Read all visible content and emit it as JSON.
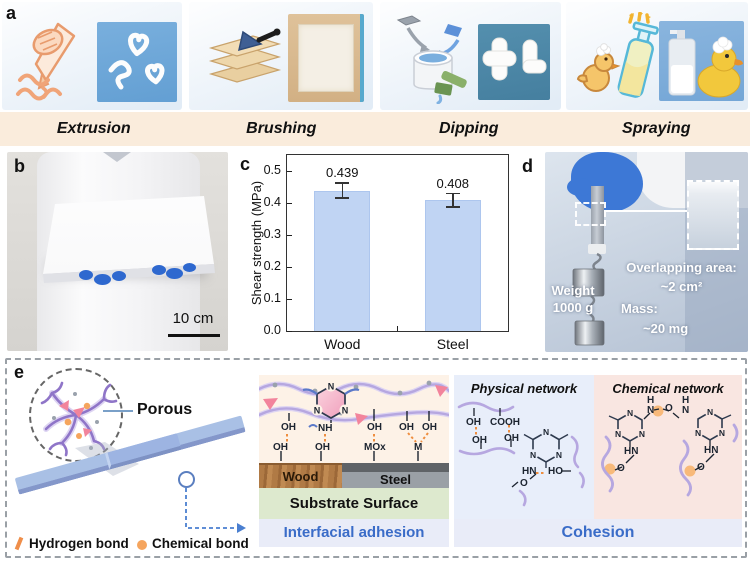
{
  "panels": {
    "a": {
      "letter": "a",
      "methods": [
        {
          "label": "Extrusion"
        },
        {
          "label": "Brushing"
        },
        {
          "label": "Dipping"
        },
        {
          "label": "Spraying"
        }
      ]
    },
    "b": {
      "letter": "b",
      "scale_bar_label": "10 cm"
    },
    "c": {
      "letter": "c"
    },
    "d": {
      "letter": "d",
      "weight_line1": "Weight",
      "weight_line2": "1000 g",
      "overlap_label": "Overlapping area:",
      "overlap_value": "~2 cm²",
      "mass_label": "Mass:",
      "mass_value": "~20 mg"
    },
    "e": {
      "letter": "e",
      "porous_label": "Porous",
      "legend": {
        "hydrogen": "Hydrogen bond",
        "chemical": "Chemical bond"
      },
      "atom_n": "N",
      "interfacial": {
        "caption": "Interfacial adhesion",
        "substrate_label": "Substrate Surface",
        "wood_label": "Wood",
        "steel_label": "Steel",
        "bonds": {
          "c1_top": "OH",
          "c1_bottom": "OH",
          "c2_top": "NH",
          "c2_bottom": "OH",
          "c3_top": "OH",
          "c3_bottom": "MOx",
          "c4_top_left": "OH",
          "c4_top_right": "OH",
          "c4_bottom": "M"
        }
      },
      "physical": {
        "title": "Physical network",
        "labels": {
          "oh1": "OH",
          "cooh": "COOH",
          "oh2": "OH",
          "oh3": "OH",
          "hn": "HN",
          "ho": "HO",
          "o": "O"
        }
      },
      "chemical": {
        "title": "Chemical network",
        "labels": {
          "h_left": "H",
          "h_right": "H",
          "n_left": "N",
          "n_right": "N",
          "o_center": "O",
          "hn_left": "HN",
          "hn_right": "HN",
          "o_left": "O",
          "o_right": "O"
        }
      },
      "cohesion_caption": "Cohesion"
    }
  },
  "chart_data": {
    "type": "bar",
    "categories": [
      "Wood",
      "Steel"
    ],
    "values": [
      0.439,
      0.408
    ],
    "errors": [
      0.023,
      0.021
    ],
    "data_labels": [
      "0.439",
      "0.408"
    ],
    "title": "",
    "xlabel": "",
    "ylabel": "Shear strength (MPa)",
    "yticks": [
      0.0,
      0.1,
      0.2,
      0.3,
      0.4,
      0.5
    ],
    "ylim": [
      0,
      0.55
    ],
    "grid": false,
    "legend": "none",
    "bar_color": "#c0d4f3",
    "bar_edge_color": "#adc6ee",
    "error_bar_color": "#333333"
  },
  "colors": {
    "label_strip_peach": "#faecdc",
    "accent_blue": "#3a6cc8",
    "bond_orange": "#ef8e3f",
    "polymer_purple": "#a595d6",
    "interfacial_bg": "#fdf2e7",
    "physical_bg": "#e8eefa",
    "chemical_bg": "#f9e6e1",
    "cohesion_bg": "#e9ecf8",
    "substrate_green": "#dde9ce"
  }
}
